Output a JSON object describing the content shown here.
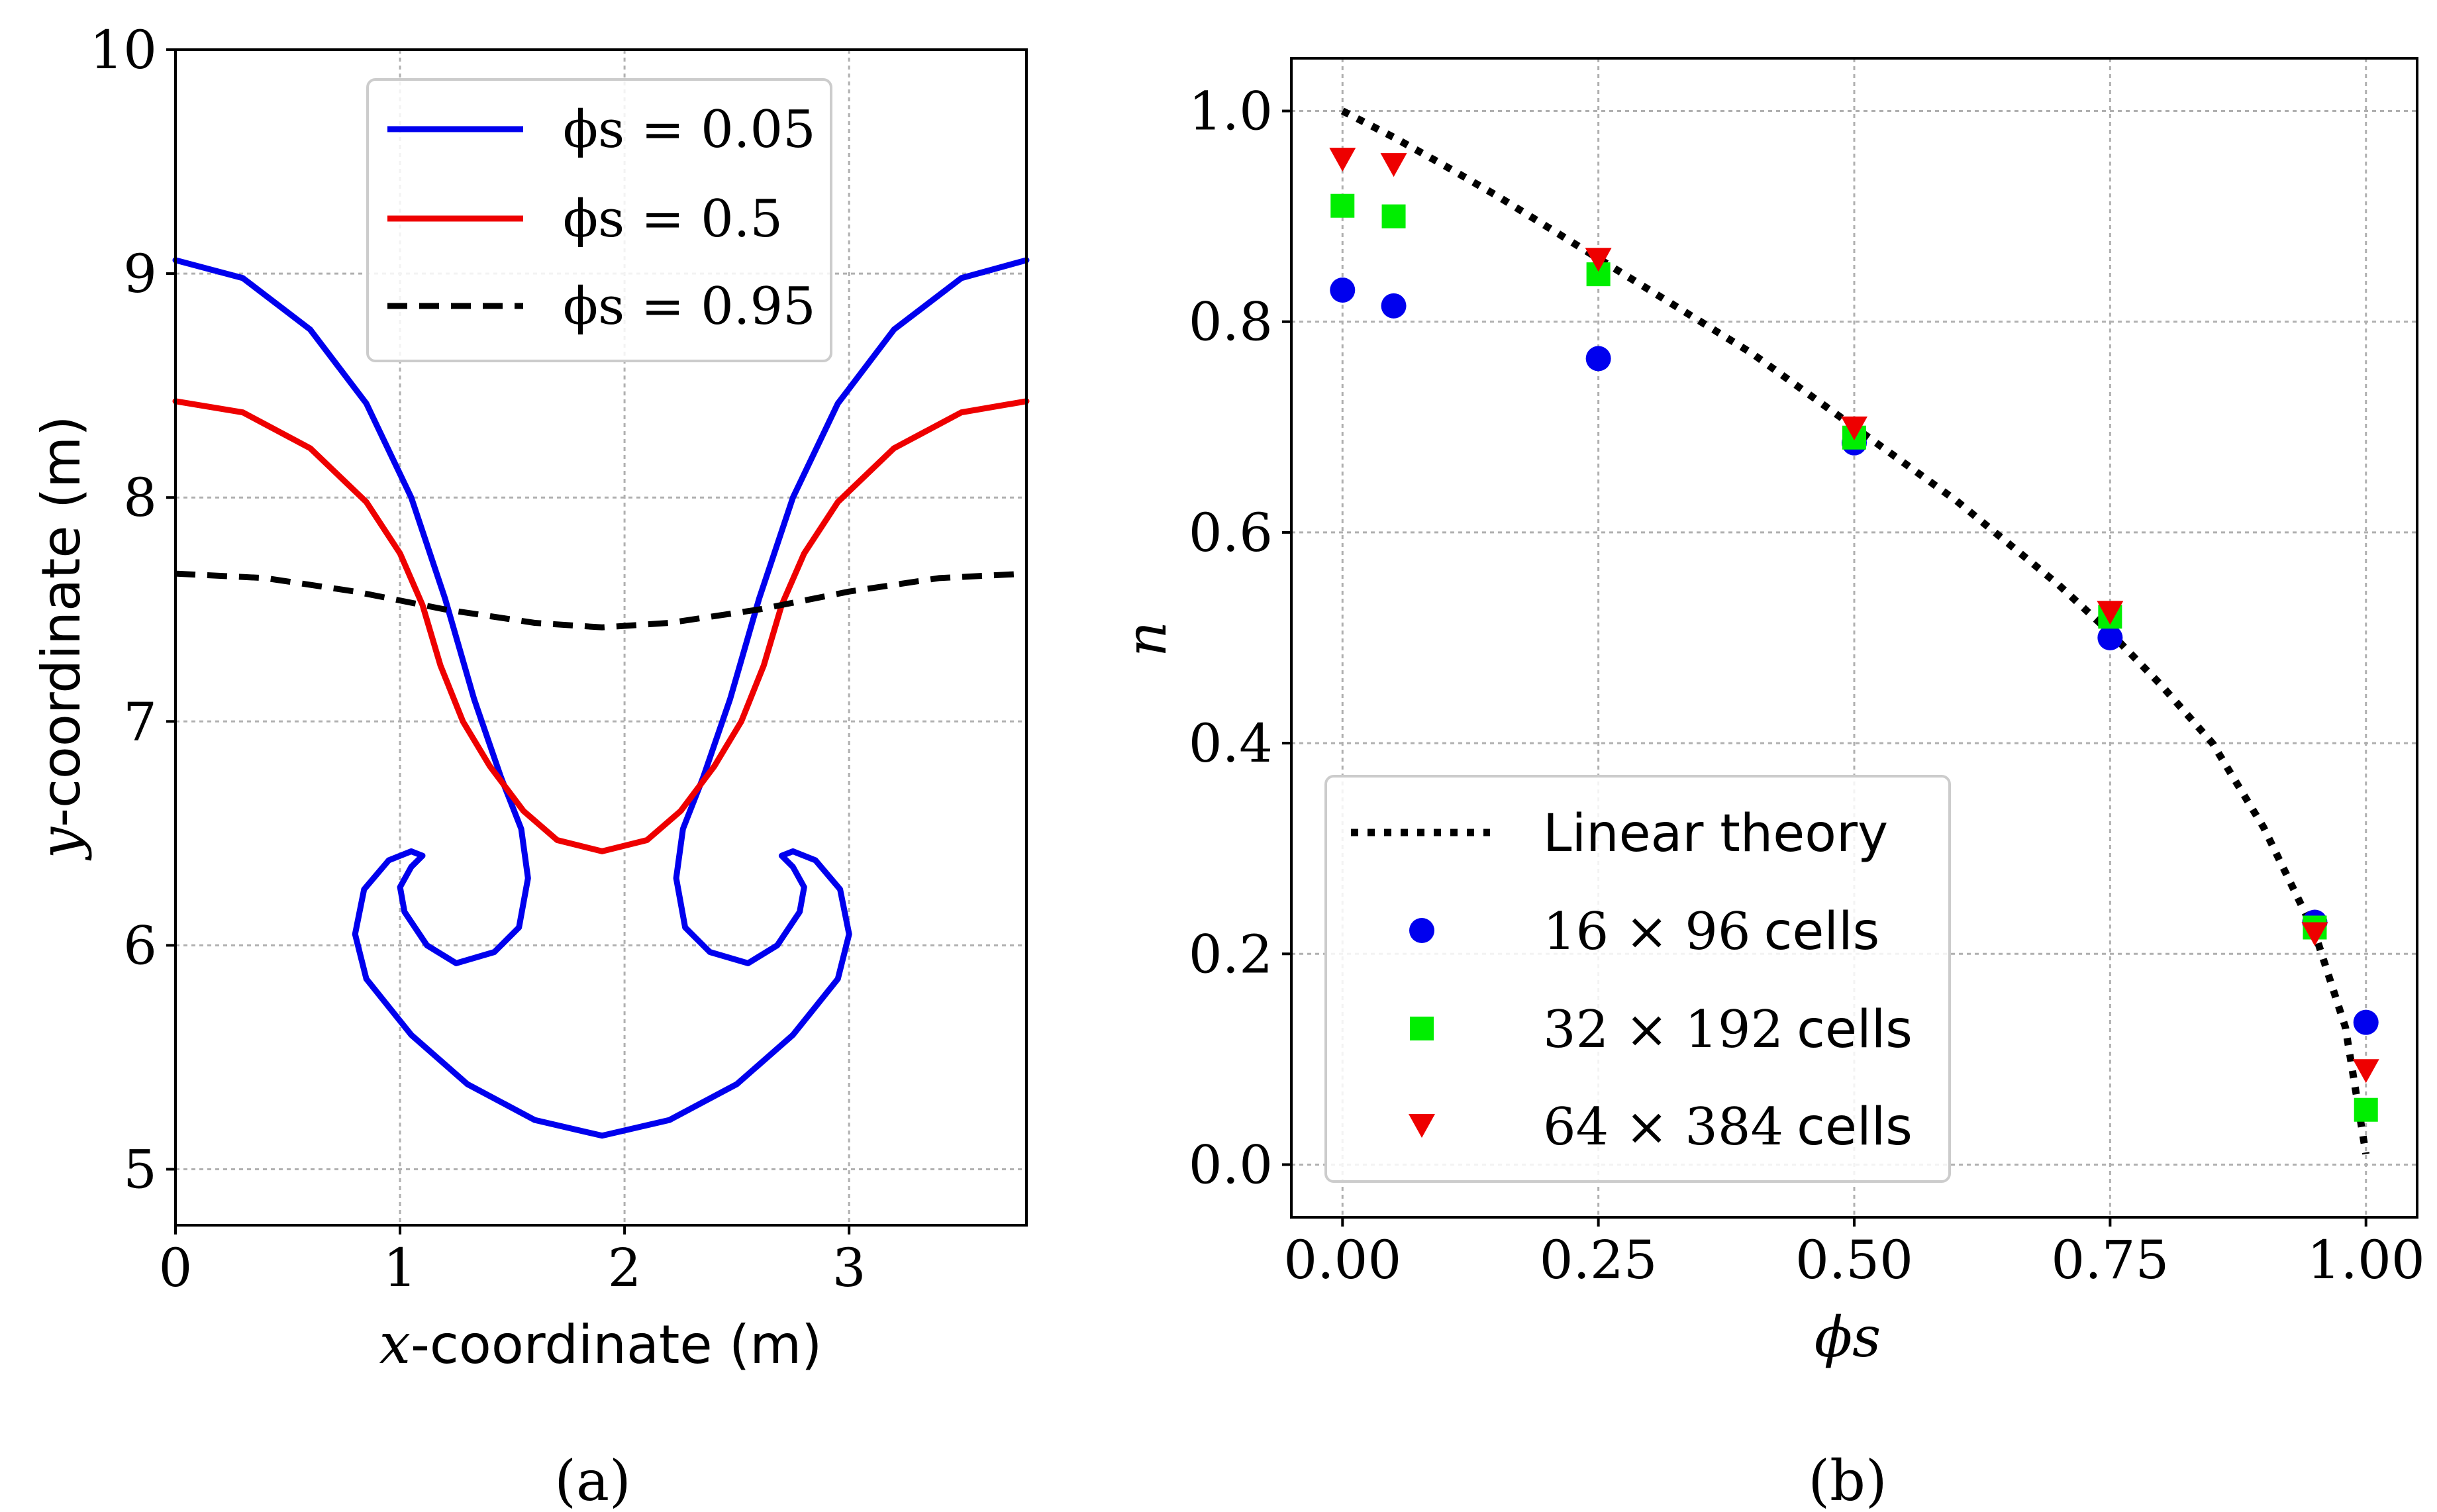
{
  "chart_data": [
    {
      "type": "line",
      "panel": "(a)",
      "xlabel": "x-coordinate (m)",
      "ylabel": "y-coordinate (m)",
      "xlabel_var": "x",
      "ylabel_var": "y",
      "xlabel_unit": "-coordinate (m)",
      "ylabel_unit": "-coordinate (m)",
      "xlim": [
        0,
        3.79
      ],
      "ylim": [
        4.75,
        10
      ],
      "xticks": [
        "0",
        "1",
        "2",
        "3"
      ],
      "xtick_values": [
        0,
        1,
        2,
        3
      ],
      "yticks": [
        "5",
        "6",
        "7",
        "8",
        "9",
        "10"
      ],
      "ytick_values": [
        5,
        6,
        7,
        8,
        9,
        10
      ],
      "grid": true,
      "legend_position": "top-center",
      "series": [
        {
          "name": "φs = 0.05",
          "legend_label": "ϕs = 0.05",
          "color": "#0000ee",
          "style": "solid",
          "points": [
            [
              0,
              9.06
            ],
            [
              0.3,
              8.98
            ],
            [
              0.6,
              8.75
            ],
            [
              0.85,
              8.42
            ],
            [
              1.05,
              8.0
            ],
            [
              1.2,
              7.55
            ],
            [
              1.33,
              7.1
            ],
            [
              1.45,
              6.75
            ],
            [
              1.54,
              6.52
            ],
            [
              1.57,
              6.3
            ],
            [
              1.53,
              6.08
            ],
            [
              1.42,
              5.97
            ],
            [
              1.25,
              5.92
            ],
            [
              1.12,
              6.0
            ],
            [
              1.02,
              6.15
            ],
            [
              1.0,
              6.26
            ],
            [
              1.05,
              6.35
            ],
            [
              1.1,
              6.4
            ],
            [
              1.05,
              6.42
            ],
            [
              0.95,
              6.38
            ],
            [
              0.84,
              6.25
            ],
            [
              0.8,
              6.05
            ],
            [
              0.85,
              5.85
            ],
            [
              1.05,
              5.6
            ],
            [
              1.3,
              5.38
            ],
            [
              1.6,
              5.22
            ],
            [
              1.9,
              5.15
            ],
            [
              2.2,
              5.22
            ],
            [
              2.5,
              5.38
            ],
            [
              2.75,
              5.6
            ],
            [
              2.95,
              5.85
            ],
            [
              3.0,
              6.05
            ],
            [
              2.96,
              6.25
            ],
            [
              2.85,
              6.38
            ],
            [
              2.75,
              6.42
            ],
            [
              2.7,
              6.4
            ],
            [
              2.75,
              6.35
            ],
            [
              2.8,
              6.26
            ],
            [
              2.78,
              6.15
            ],
            [
              2.68,
              6.0
            ],
            [
              2.55,
              5.92
            ],
            [
              2.38,
              5.97
            ],
            [
              2.27,
              6.08
            ],
            [
              2.23,
              6.3
            ],
            [
              2.26,
              6.52
            ],
            [
              2.35,
              6.75
            ],
            [
              2.47,
              7.1
            ],
            [
              2.6,
              7.55
            ],
            [
              2.75,
              8.0
            ],
            [
              2.95,
              8.42
            ],
            [
              3.2,
              8.75
            ],
            [
              3.5,
              8.98
            ],
            [
              3.79,
              9.06
            ]
          ]
        },
        {
          "name": "φs = 0.5",
          "legend_label": "ϕs = 0.5",
          "color": "#ee0000",
          "style": "solid",
          "points": [
            [
              0,
              8.43
            ],
            [
              0.3,
              8.38
            ],
            [
              0.6,
              8.22
            ],
            [
              0.85,
              7.98
            ],
            [
              1.0,
              7.75
            ],
            [
              1.1,
              7.52
            ],
            [
              1.18,
              7.25
            ],
            [
              1.28,
              7.0
            ],
            [
              1.4,
              6.8
            ],
            [
              1.55,
              6.6
            ],
            [
              1.7,
              6.47
            ],
            [
              1.9,
              6.42
            ],
            [
              2.1,
              6.47
            ],
            [
              2.25,
              6.6
            ],
            [
              2.4,
              6.8
            ],
            [
              2.52,
              7.0
            ],
            [
              2.62,
              7.25
            ],
            [
              2.7,
              7.52
            ],
            [
              2.8,
              7.75
            ],
            [
              2.95,
              7.98
            ],
            [
              3.2,
              8.22
            ],
            [
              3.5,
              8.38
            ],
            [
              3.79,
              8.43
            ]
          ]
        },
        {
          "name": "φs = 0.95",
          "legend_label": "ϕs = 0.95",
          "color": "#000000",
          "style": "dashed",
          "points": [
            [
              0,
              7.66
            ],
            [
              0.4,
              7.64
            ],
            [
              0.8,
              7.58
            ],
            [
              1.2,
              7.5
            ],
            [
              1.6,
              7.44
            ],
            [
              1.9,
              7.42
            ],
            [
              2.2,
              7.44
            ],
            [
              2.6,
              7.5
            ],
            [
              3.0,
              7.58
            ],
            [
              3.4,
              7.64
            ],
            [
              3.79,
              7.66
            ]
          ]
        }
      ],
      "caption": "(a)"
    },
    {
      "type": "scatter",
      "panel": "(b)",
      "xlabel": "ϕs",
      "ylabel": "n",
      "xlim": [
        -0.05,
        1.05
      ],
      "ylim": [
        -0.05,
        1.05
      ],
      "xticks": [
        "0.00",
        "0.25",
        "0.50",
        "0.75",
        "1.00"
      ],
      "xtick_values": [
        0,
        0.25,
        0.5,
        0.75,
        1.0
      ],
      "yticks": [
        "0.0",
        "0.2",
        "0.4",
        "0.6",
        "0.8",
        "1.0"
      ],
      "ytick_values": [
        0,
        0.2,
        0.4,
        0.6,
        0.8,
        1.0
      ],
      "grid": true,
      "legend_position": "lower-left",
      "theory": {
        "name": "Linear theory",
        "style": "dotted",
        "color": "#000000",
        "points": [
          [
            0,
            1.0
          ],
          [
            0.05,
            0.975
          ],
          [
            0.1,
            0.948
          ],
          [
            0.15,
            0.92
          ],
          [
            0.2,
            0.89
          ],
          [
            0.25,
            0.86
          ],
          [
            0.3,
            0.83
          ],
          [
            0.35,
            0.8
          ],
          [
            0.4,
            0.77
          ],
          [
            0.45,
            0.735
          ],
          [
            0.5,
            0.7
          ],
          [
            0.55,
            0.665
          ],
          [
            0.6,
            0.63
          ],
          [
            0.65,
            0.59
          ],
          [
            0.7,
            0.55
          ],
          [
            0.75,
            0.505
          ],
          [
            0.8,
            0.455
          ],
          [
            0.85,
            0.4
          ],
          [
            0.9,
            0.32
          ],
          [
            0.95,
            0.22
          ],
          [
            0.98,
            0.13
          ],
          [
            1.0,
            0.01
          ]
        ]
      },
      "series": [
        {
          "name": "16 × 96 cells",
          "legend_num": "16 × 96",
          "legend_unit": "cells",
          "marker": "circle",
          "color": "#0000ee",
          "x": [
            0,
            0.05,
            0.25,
            0.5,
            0.75,
            0.95,
            1.0
          ],
          "y": [
            0.83,
            0.815,
            0.765,
            0.685,
            0.5,
            0.23,
            0.135
          ]
        },
        {
          "name": "32 × 192 cells",
          "legend_num": "32 × 192",
          "legend_unit": "cells",
          "marker": "square",
          "color": "#00ee00",
          "x": [
            0,
            0.05,
            0.25,
            0.5,
            0.75,
            0.95,
            1.0
          ],
          "y": [
            0.91,
            0.9,
            0.845,
            0.69,
            0.52,
            0.225,
            0.052
          ]
        },
        {
          "name": "64 × 384 cells",
          "legend_num": "64 × 384",
          "legend_unit": "cells",
          "marker": "triangle-down",
          "color": "#ee0000",
          "x": [
            0,
            0.05,
            0.25,
            0.5,
            0.75,
            0.95,
            1.0
          ],
          "y": [
            0.955,
            0.95,
            0.86,
            0.7,
            0.525,
            0.22,
            0.09
          ]
        }
      ],
      "caption": "(b)"
    }
  ]
}
